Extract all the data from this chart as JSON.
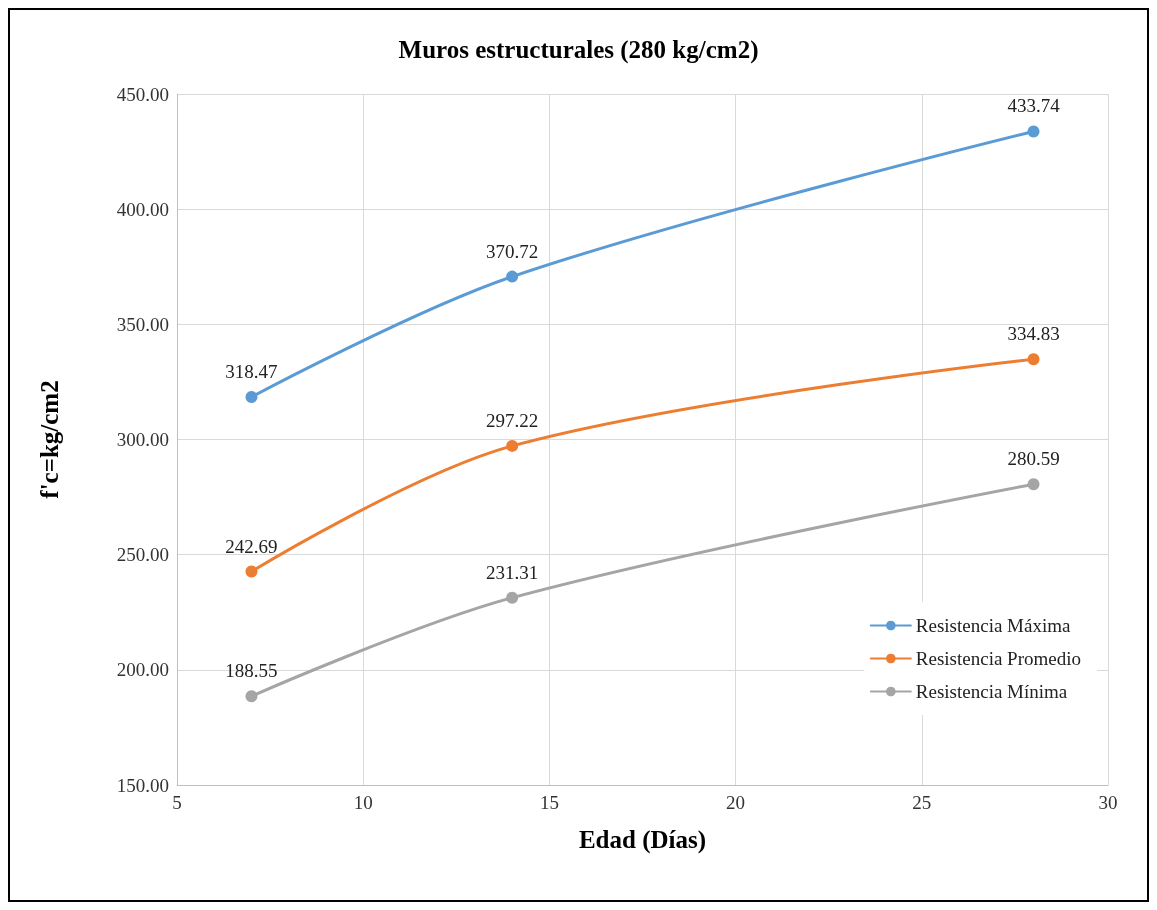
{
  "chart_data": {
    "type": "line",
    "title": "Muros estructurales (280 kg/cm2)",
    "xlabel": "Edad (Días)",
    "ylabel": "f'c=kg/cm2",
    "x": [
      7,
      14,
      28
    ],
    "series": [
      {
        "name": "Resistencia Máxima",
        "color": "#5b9bd5",
        "values": [
          318.47,
          370.72,
          433.74
        ]
      },
      {
        "name": "Resistencia Promedio",
        "color": "#ed7d31",
        "values": [
          242.69,
          297.22,
          334.83
        ]
      },
      {
        "name": "Resistencia Mínima",
        "color": "#a5a5a5",
        "values": [
          188.55,
          231.31,
          280.59
        ]
      }
    ],
    "xlim": [
      5,
      30
    ],
    "xticks": [
      5,
      10,
      15,
      20,
      25,
      30
    ],
    "ylim": [
      150,
      450
    ],
    "yticks": [
      {
        "value": 150,
        "label": "150.00"
      },
      {
        "value": 200,
        "label": "200.00"
      },
      {
        "value": 250,
        "label": "250.00"
      },
      {
        "value": 300,
        "label": "300.00"
      },
      {
        "value": 350,
        "label": "350.00"
      },
      {
        "value": 400,
        "label": "400.00"
      },
      {
        "value": 450,
        "label": "450.00"
      }
    ],
    "grid": true,
    "legend": "bottom right",
    "marker": "circle",
    "line_style": "solid",
    "data_labels": true
  }
}
